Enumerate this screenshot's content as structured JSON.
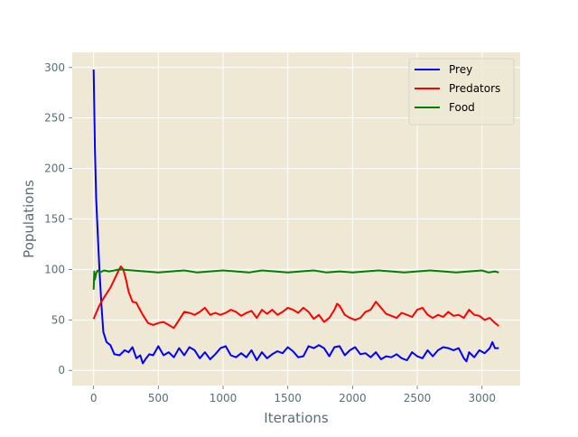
{
  "chart_data": {
    "type": "line",
    "title": "",
    "xlabel": "Iterations",
    "ylabel": "Populations",
    "xlim": [
      -165,
      3295
    ],
    "ylim": [
      -15,
      315
    ],
    "xticks": [
      0,
      500,
      1000,
      1500,
      2000,
      2500,
      3000
    ],
    "yticks": [
      0,
      50,
      100,
      150,
      200,
      250,
      300
    ],
    "grid": true,
    "legend_position": "top-right",
    "colors": {
      "background": "#eee8d5",
      "grid": "#ffffff",
      "axis_text": "#586e75"
    },
    "series": [
      {
        "name": "Prey",
        "color": "#0000ff",
        "x": [
          0,
          10,
          20,
          30,
          45,
          60,
          75,
          100,
          130,
          160,
          200,
          240,
          270,
          300,
          330,
          360,
          380,
          400,
          430,
          460,
          500,
          540,
          580,
          620,
          660,
          700,
          740,
          780,
          820,
          860,
          900,
          940,
          980,
          1020,
          1060,
          1100,
          1140,
          1180,
          1220,
          1260,
          1300,
          1340,
          1380,
          1420,
          1460,
          1500,
          1540,
          1580,
          1620,
          1660,
          1700,
          1740,
          1780,
          1820,
          1860,
          1900,
          1940,
          1980,
          2020,
          2060,
          2100,
          2140,
          2180,
          2220,
          2260,
          2300,
          2340,
          2380,
          2420,
          2460,
          2500,
          2540,
          2580,
          2620,
          2660,
          2700,
          2740,
          2780,
          2820,
          2860,
          2880,
          2900,
          2940,
          2980,
          3020,
          3060,
          3080,
          3100,
          3130
        ],
        "y": [
          298,
          220,
          170,
          140,
          100,
          65,
          38,
          28,
          25,
          16,
          15,
          20,
          18,
          23,
          12,
          15,
          7,
          11,
          16,
          15,
          24,
          15,
          18,
          13,
          22,
          15,
          23,
          20,
          12,
          18,
          11,
          16,
          22,
          24,
          15,
          13,
          17,
          13,
          20,
          10,
          18,
          12,
          16,
          19,
          17,
          23,
          19,
          13,
          14,
          24,
          22,
          25,
          22,
          14,
          23,
          24,
          15,
          20,
          23,
          16,
          17,
          13,
          18,
          11,
          14,
          13,
          16,
          12,
          10,
          18,
          14,
          12,
          20,
          14,
          20,
          23,
          22,
          20,
          22,
          12,
          9,
          18,
          13,
          20,
          17,
          22,
          28,
          22,
          22
        ]
      },
      {
        "name": "Predators",
        "color": "#ff0000",
        "x": [
          0,
          20,
          40,
          60,
          80,
          100,
          130,
          160,
          190,
          210,
          230,
          250,
          270,
          300,
          330,
          350,
          380,
          420,
          460,
          500,
          540,
          580,
          620,
          660,
          700,
          740,
          780,
          820,
          860,
          900,
          940,
          980,
          1020,
          1060,
          1100,
          1140,
          1180,
          1220,
          1260,
          1300,
          1340,
          1380,
          1420,
          1460,
          1500,
          1540,
          1580,
          1620,
          1660,
          1700,
          1740,
          1780,
          1820,
          1860,
          1880,
          1900,
          1940,
          1980,
          2020,
          2060,
          2100,
          2140,
          2180,
          2220,
          2260,
          2300,
          2340,
          2380,
          2420,
          2460,
          2500,
          2540,
          2580,
          2620,
          2660,
          2700,
          2740,
          2780,
          2820,
          2860,
          2900,
          2940,
          2980,
          3020,
          3060,
          3100,
          3130
        ],
        "y": [
          51,
          57,
          63,
          68,
          72,
          76,
          82,
          90,
          98,
          103,
          100,
          90,
          78,
          68,
          67,
          62,
          55,
          47,
          45,
          47,
          48,
          45,
          42,
          50,
          58,
          57,
          55,
          58,
          62,
          55,
          57,
          55,
          57,
          60,
          58,
          54,
          57,
          59,
          52,
          60,
          56,
          60,
          55,
          58,
          62,
          60,
          57,
          62,
          58,
          51,
          55,
          48,
          52,
          60,
          66,
          64,
          55,
          52,
          50,
          52,
          58,
          60,
          68,
          62,
          56,
          54,
          52,
          57,
          55,
          53,
          60,
          62,
          55,
          52,
          55,
          53,
          58,
          54,
          55,
          52,
          60,
          55,
          54,
          50,
          52,
          47,
          44
        ]
      },
      {
        "name": "Food",
        "color": "#008000",
        "x": [
          0,
          5,
          10,
          20,
          30,
          50,
          80,
          120,
          200,
          300,
          400,
          500,
          600,
          700,
          800,
          900,
          1000,
          1100,
          1200,
          1300,
          1400,
          1500,
          1600,
          1700,
          1800,
          1900,
          2000,
          2100,
          2200,
          2300,
          2400,
          2500,
          2600,
          2700,
          2800,
          2900,
          3000,
          3050,
          3100,
          3130
        ],
        "y": [
          80,
          98,
          90,
          96,
          99,
          97,
          99,
          98,
          100,
          99,
          98,
          97,
          98,
          99,
          97,
          98,
          99,
          98,
          97,
          99,
          98,
          97,
          98,
          99,
          97,
          98,
          97,
          98,
          99,
          98,
          97,
          98,
          99,
          98,
          97,
          98,
          99,
          97,
          98,
          97
        ]
      }
    ]
  }
}
